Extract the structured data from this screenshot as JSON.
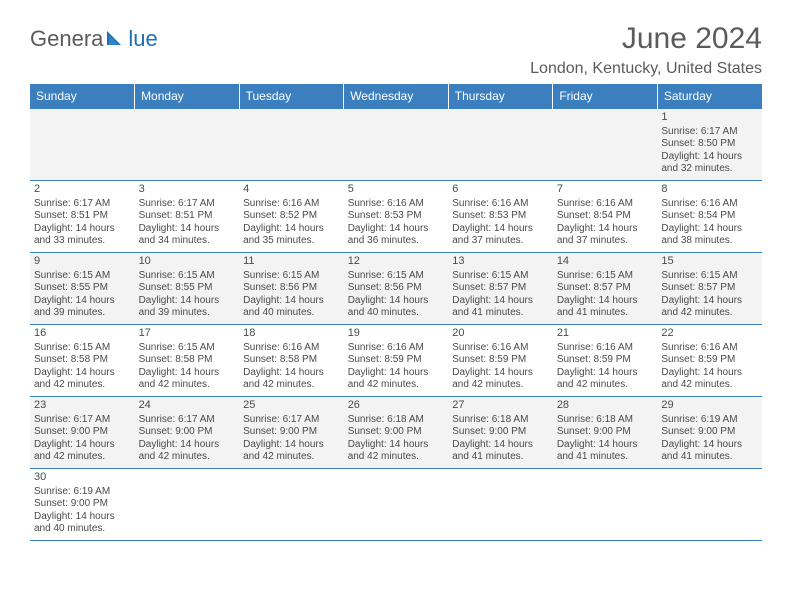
{
  "logo": {
    "general": "Genera",
    "blue": "lue",
    "sail_color": "#1f6fb2"
  },
  "title": "June 2024",
  "location": "London, Kentucky, United States",
  "colors": {
    "header_bg": "#3b7fbf",
    "header_text": "#ffffff",
    "rule": "#3b7fbf",
    "alt_row_bg": "#f3f3f3",
    "body_text": "#4a4a4a",
    "title_text": "#5b5b5b",
    "logo_blue": "#1f6fb2"
  },
  "day_headers": [
    "Sunday",
    "Monday",
    "Tuesday",
    "Wednesday",
    "Thursday",
    "Friday",
    "Saturday"
  ],
  "weeks": [
    {
      "alt": true,
      "cells": [
        null,
        null,
        null,
        null,
        null,
        null,
        {
          "n": "1",
          "sr": "Sunrise: 6:17 AM",
          "ss": "Sunset: 8:50 PM",
          "d1": "Daylight: 14 hours",
          "d2": "and 32 minutes."
        }
      ]
    },
    {
      "alt": false,
      "cells": [
        {
          "n": "2",
          "sr": "Sunrise: 6:17 AM",
          "ss": "Sunset: 8:51 PM",
          "d1": "Daylight: 14 hours",
          "d2": "and 33 minutes."
        },
        {
          "n": "3",
          "sr": "Sunrise: 6:17 AM",
          "ss": "Sunset: 8:51 PM",
          "d1": "Daylight: 14 hours",
          "d2": "and 34 minutes."
        },
        {
          "n": "4",
          "sr": "Sunrise: 6:16 AM",
          "ss": "Sunset: 8:52 PM",
          "d1": "Daylight: 14 hours",
          "d2": "and 35 minutes."
        },
        {
          "n": "5",
          "sr": "Sunrise: 6:16 AM",
          "ss": "Sunset: 8:53 PM",
          "d1": "Daylight: 14 hours",
          "d2": "and 36 minutes."
        },
        {
          "n": "6",
          "sr": "Sunrise: 6:16 AM",
          "ss": "Sunset: 8:53 PM",
          "d1": "Daylight: 14 hours",
          "d2": "and 37 minutes."
        },
        {
          "n": "7",
          "sr": "Sunrise: 6:16 AM",
          "ss": "Sunset: 8:54 PM",
          "d1": "Daylight: 14 hours",
          "d2": "and 37 minutes."
        },
        {
          "n": "8",
          "sr": "Sunrise: 6:16 AM",
          "ss": "Sunset: 8:54 PM",
          "d1": "Daylight: 14 hours",
          "d2": "and 38 minutes."
        }
      ]
    },
    {
      "alt": true,
      "cells": [
        {
          "n": "9",
          "sr": "Sunrise: 6:15 AM",
          "ss": "Sunset: 8:55 PM",
          "d1": "Daylight: 14 hours",
          "d2": "and 39 minutes."
        },
        {
          "n": "10",
          "sr": "Sunrise: 6:15 AM",
          "ss": "Sunset: 8:55 PM",
          "d1": "Daylight: 14 hours",
          "d2": "and 39 minutes."
        },
        {
          "n": "11",
          "sr": "Sunrise: 6:15 AM",
          "ss": "Sunset: 8:56 PM",
          "d1": "Daylight: 14 hours",
          "d2": "and 40 minutes."
        },
        {
          "n": "12",
          "sr": "Sunrise: 6:15 AM",
          "ss": "Sunset: 8:56 PM",
          "d1": "Daylight: 14 hours",
          "d2": "and 40 minutes."
        },
        {
          "n": "13",
          "sr": "Sunrise: 6:15 AM",
          "ss": "Sunset: 8:57 PM",
          "d1": "Daylight: 14 hours",
          "d2": "and 41 minutes."
        },
        {
          "n": "14",
          "sr": "Sunrise: 6:15 AM",
          "ss": "Sunset: 8:57 PM",
          "d1": "Daylight: 14 hours",
          "d2": "and 41 minutes."
        },
        {
          "n": "15",
          "sr": "Sunrise: 6:15 AM",
          "ss": "Sunset: 8:57 PM",
          "d1": "Daylight: 14 hours",
          "d2": "and 42 minutes."
        }
      ]
    },
    {
      "alt": false,
      "cells": [
        {
          "n": "16",
          "sr": "Sunrise: 6:15 AM",
          "ss": "Sunset: 8:58 PM",
          "d1": "Daylight: 14 hours",
          "d2": "and 42 minutes."
        },
        {
          "n": "17",
          "sr": "Sunrise: 6:15 AM",
          "ss": "Sunset: 8:58 PM",
          "d1": "Daylight: 14 hours",
          "d2": "and 42 minutes."
        },
        {
          "n": "18",
          "sr": "Sunrise: 6:16 AM",
          "ss": "Sunset: 8:58 PM",
          "d1": "Daylight: 14 hours",
          "d2": "and 42 minutes."
        },
        {
          "n": "19",
          "sr": "Sunrise: 6:16 AM",
          "ss": "Sunset: 8:59 PM",
          "d1": "Daylight: 14 hours",
          "d2": "and 42 minutes."
        },
        {
          "n": "20",
          "sr": "Sunrise: 6:16 AM",
          "ss": "Sunset: 8:59 PM",
          "d1": "Daylight: 14 hours",
          "d2": "and 42 minutes."
        },
        {
          "n": "21",
          "sr": "Sunrise: 6:16 AM",
          "ss": "Sunset: 8:59 PM",
          "d1": "Daylight: 14 hours",
          "d2": "and 42 minutes."
        },
        {
          "n": "22",
          "sr": "Sunrise: 6:16 AM",
          "ss": "Sunset: 8:59 PM",
          "d1": "Daylight: 14 hours",
          "d2": "and 42 minutes."
        }
      ]
    },
    {
      "alt": true,
      "cells": [
        {
          "n": "23",
          "sr": "Sunrise: 6:17 AM",
          "ss": "Sunset: 9:00 PM",
          "d1": "Daylight: 14 hours",
          "d2": "and 42 minutes."
        },
        {
          "n": "24",
          "sr": "Sunrise: 6:17 AM",
          "ss": "Sunset: 9:00 PM",
          "d1": "Daylight: 14 hours",
          "d2": "and 42 minutes."
        },
        {
          "n": "25",
          "sr": "Sunrise: 6:17 AM",
          "ss": "Sunset: 9:00 PM",
          "d1": "Daylight: 14 hours",
          "d2": "and 42 minutes."
        },
        {
          "n": "26",
          "sr": "Sunrise: 6:18 AM",
          "ss": "Sunset: 9:00 PM",
          "d1": "Daylight: 14 hours",
          "d2": "and 42 minutes."
        },
        {
          "n": "27",
          "sr": "Sunrise: 6:18 AM",
          "ss": "Sunset: 9:00 PM",
          "d1": "Daylight: 14 hours",
          "d2": "and 41 minutes."
        },
        {
          "n": "28",
          "sr": "Sunrise: 6:18 AM",
          "ss": "Sunset: 9:00 PM",
          "d1": "Daylight: 14 hours",
          "d2": "and 41 minutes."
        },
        {
          "n": "29",
          "sr": "Sunrise: 6:19 AM",
          "ss": "Sunset: 9:00 PM",
          "d1": "Daylight: 14 hours",
          "d2": "and 41 minutes."
        }
      ]
    },
    {
      "alt": false,
      "cells": [
        {
          "n": "30",
          "sr": "Sunrise: 6:19 AM",
          "ss": "Sunset: 9:00 PM",
          "d1": "Daylight: 14 hours",
          "d2": "and 40 minutes."
        },
        null,
        null,
        null,
        null,
        null,
        null
      ]
    }
  ]
}
